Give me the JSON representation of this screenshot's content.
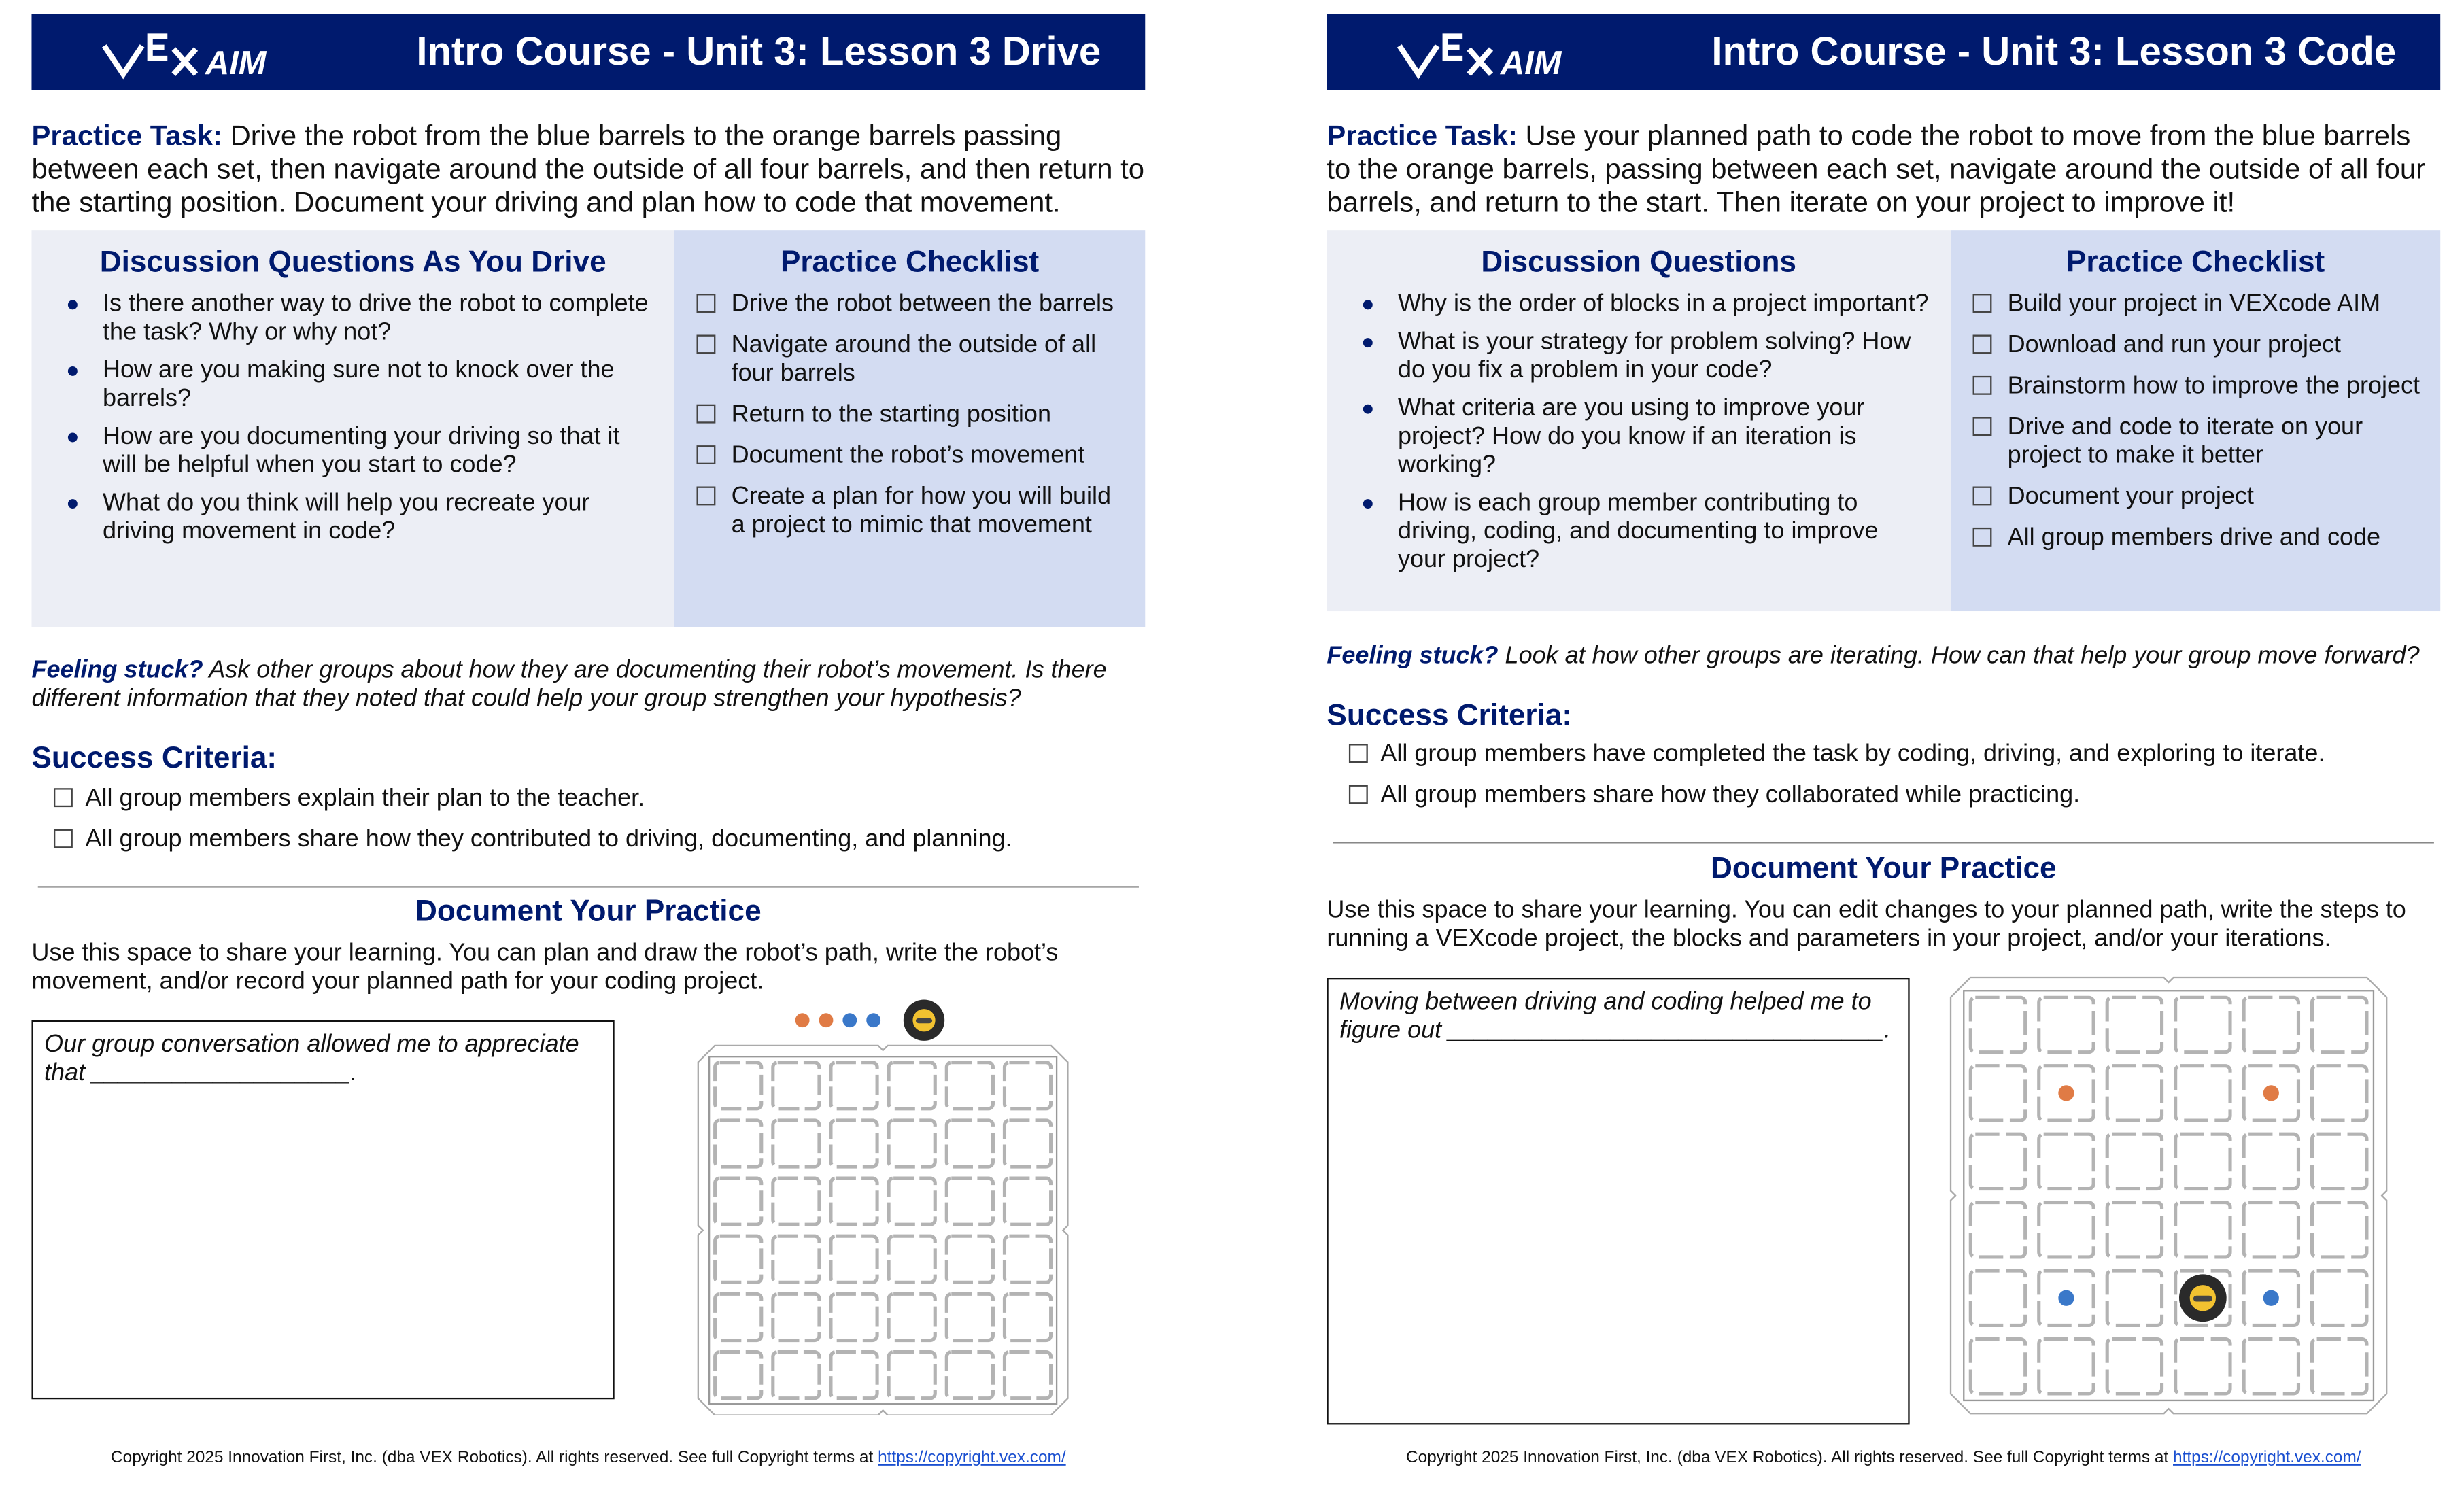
{
  "brand": {
    "logo_text": "VEX AIM",
    "navy": "#001a6e"
  },
  "pages": [
    {
      "title": "Intro Course - Unit 3: Lesson 3 Drive",
      "task_label": "Practice Task:",
      "task_text": " Drive the robot from the blue barrels to the orange barrels passing between each set, then navigate around the outside of all four barrels, and then return to the starting position. Document your driving and plan how to code that movement.",
      "discussion_title": "Discussion Questions As You Drive",
      "discussion": [
        "Is there another way to drive the robot to complete the task? Why or why not?",
        "How are you making sure not to knock over the barrels?",
        "How are you documenting your driving so that it will be helpful when you start to code?",
        "What do you think will help you recreate your driving movement in code?"
      ],
      "checklist_title": "Practice Checklist",
      "checklist": [
        "Drive the robot between the barrels",
        "Navigate around the outside of all four barrels",
        "Return to the starting position",
        "Document the robot’s movement",
        "Create a plan for how you will build a project to mimic that movement"
      ],
      "stuck_label": "Feeling stuck?",
      "stuck_text": " Ask other groups about how they are documenting their robot’s movement. Is there different information that they noted that could help your group strengthen your hypothesis?",
      "success_title": "Success Criteria:",
      "success": [
        "All group members explain their plan to the teacher.",
        "All group members share how they contributed to driving, documenting, and planning."
      ],
      "doc_title": "Document Your Practice",
      "doc_text": "Use this space to share your learning. You can plan and draw the robot’s path, write the robot’s movement, and/or record your planned path for your coding project.",
      "prompt": "Our group conversation allowed me to appreciate that ___________________.",
      "field": {
        "barrels_off_field": [
          "orange",
          "orange",
          "blue",
          "blue"
        ],
        "robot": "off-field"
      },
      "copyright": "Copyright 2025 Innovation First, Inc. (dba VEX Robotics). All rights reserved. See full Copyright terms at ",
      "copyright_link": "https://copyright.vex.com/"
    },
    {
      "title": "Intro Course - Unit 3: Lesson 3 Code",
      "task_label": "Practice Task:",
      "task_text": " Use your planned path to code the robot to move from the blue barrels to the orange barrels, passing between each set, navigate around the outside of all four barrels, and return to the start. Then iterate on your project to improve it!",
      "discussion_title": "Discussion Questions",
      "discussion": [
        "Why is the order of blocks in a project important?",
        "What is your strategy for problem solving? How do you fix a problem in your code?",
        "What criteria are you using to improve your project? How do you know if an iteration is working?",
        "How is each group member contributing to driving, coding, and documenting to improve your project?"
      ],
      "checklist_title": "Practice Checklist",
      "checklist": [
        "Build your project in VEXcode AIM",
        "Download and run your project",
        "Brainstorm how to improve the project",
        "Drive and code to iterate on your project to make it better",
        "Document your project",
        "All group members drive and code"
      ],
      "stuck_label": "Feeling stuck?",
      "stuck_text": " Look at how other groups are iterating. How can that help your group move forward?",
      "success_title": "Success Criteria:",
      "success": [
        "All group members have completed the task by coding, driving, and exploring to iterate.",
        "All group members share how they collaborated while practicing."
      ],
      "doc_title": "Document Your Practice",
      "doc_text": "Use this space to share your learning. You can edit changes to your planned path, write the steps to running a VEXcode project, the blocks and parameters in your project, and/or your iterations.",
      "prompt": "Moving between driving and coding helped me to figure out ________________________________.",
      "field": {
        "barrels": [
          {
            "color": "orange",
            "row": 2,
            "col": 2
          },
          {
            "color": "orange",
            "row": 2,
            "col": 5
          },
          {
            "color": "blue",
            "row": 5,
            "col": 2
          },
          {
            "color": "blue",
            "row": 5,
            "col": 5
          }
        ],
        "robot": {
          "row": 5,
          "col": 3.5
        }
      },
      "copyright": "Copyright 2025 Innovation First, Inc. (dba VEX Robotics). All rights reserved. See full Copyright terms at ",
      "copyright_link": "https://copyright.vex.com/"
    }
  ],
  "colors": {
    "orange": "#e07b45",
    "blue": "#3a78c9"
  }
}
